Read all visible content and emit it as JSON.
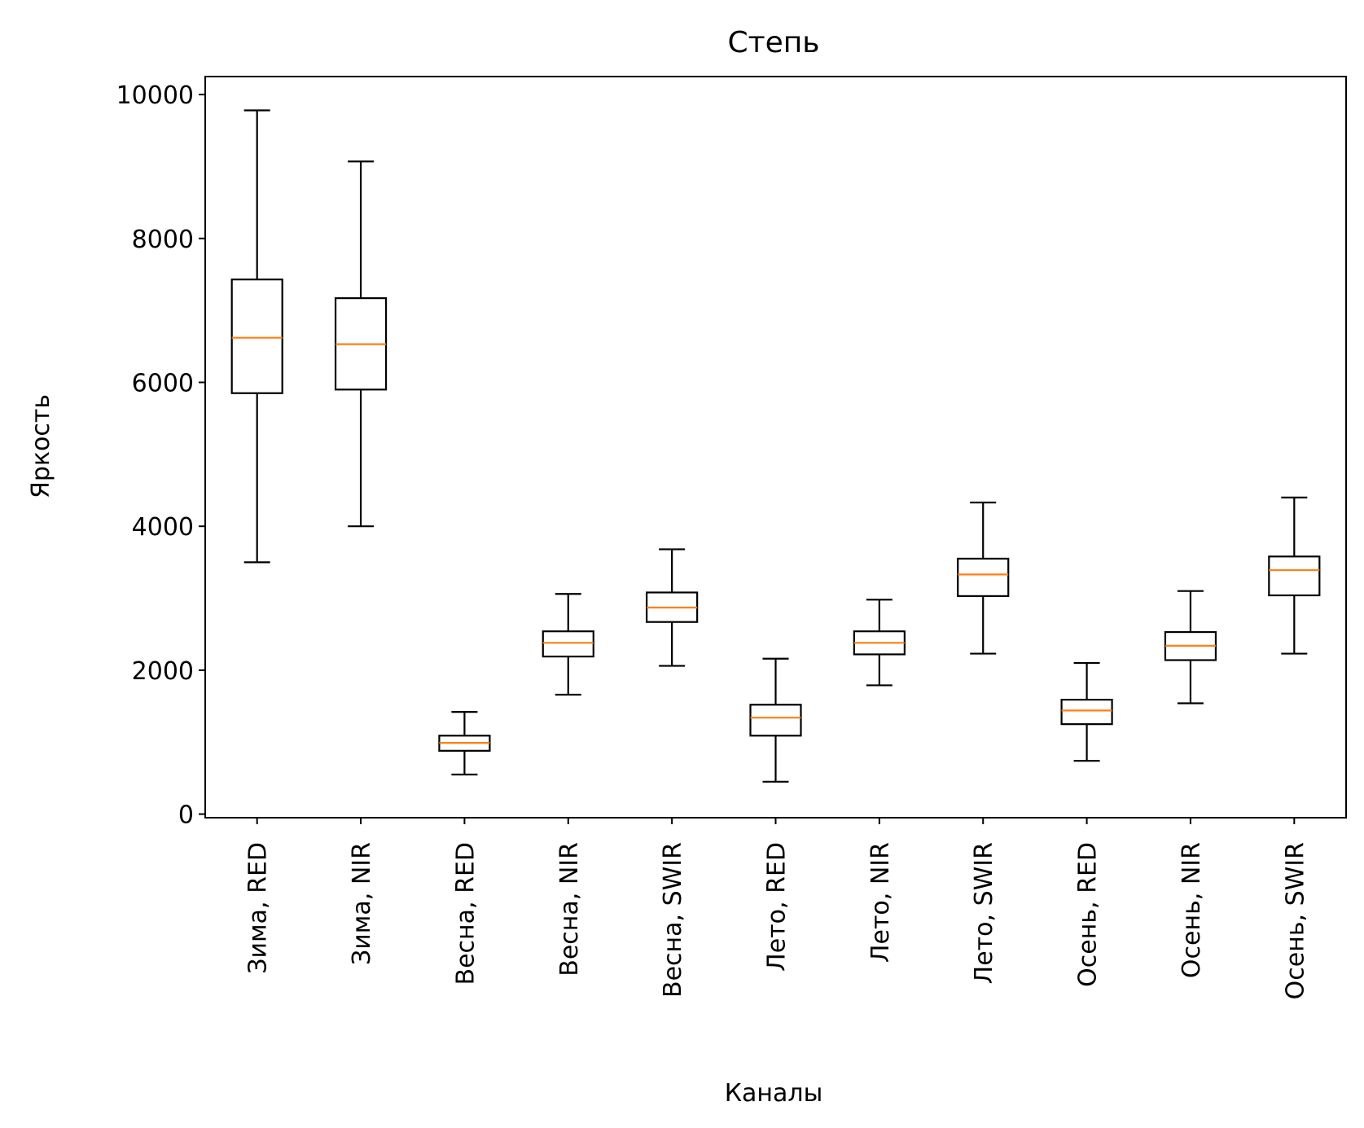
{
  "chart_data": {
    "type": "box",
    "title": "Степь",
    "xlabel": "Каналы",
    "ylabel": "Яркость",
    "ylim": [
      -50,
      10250
    ],
    "yticks": [
      0,
      2000,
      4000,
      6000,
      8000,
      10000
    ],
    "ytick_labels": [
      "0",
      "2000",
      "4000",
      "6000",
      "8000",
      "10000"
    ],
    "grid": false,
    "colors": {
      "box": "#000000",
      "median": "#ff7f0e"
    },
    "categories": [
      "Зима, RED",
      "Зима, NIR",
      "Весна, RED",
      "Весна, NIR",
      "Весна, SWIR",
      "Лето, RED",
      "Лето, NIR",
      "Лето, SWIR",
      "Осень, RED",
      "Осень, NIR",
      "Осень, SWIR"
    ],
    "boxes": [
      {
        "whisker_low": 3500,
        "q1": 5850,
        "median": 6620,
        "q3": 7430,
        "whisker_high": 9780
      },
      {
        "whisker_low": 4000,
        "q1": 5900,
        "median": 6530,
        "q3": 7170,
        "whisker_high": 9070
      },
      {
        "whisker_low": 550,
        "q1": 880,
        "median": 990,
        "q3": 1090,
        "whisker_high": 1420
      },
      {
        "whisker_low": 1660,
        "q1": 2190,
        "median": 2380,
        "q3": 2540,
        "whisker_high": 3060
      },
      {
        "whisker_low": 2060,
        "q1": 2670,
        "median": 2870,
        "q3": 3080,
        "whisker_high": 3680
      },
      {
        "whisker_low": 450,
        "q1": 1090,
        "median": 1340,
        "q3": 1520,
        "whisker_high": 2160
      },
      {
        "whisker_low": 1790,
        "q1": 2220,
        "median": 2380,
        "q3": 2540,
        "whisker_high": 2980
      },
      {
        "whisker_low": 2230,
        "q1": 3030,
        "median": 3330,
        "q3": 3550,
        "whisker_high": 4330
      },
      {
        "whisker_low": 740,
        "q1": 1250,
        "median": 1440,
        "q3": 1590,
        "whisker_high": 2100
      },
      {
        "whisker_low": 1540,
        "q1": 2140,
        "median": 2340,
        "q3": 2530,
        "whisker_high": 3100
      },
      {
        "whisker_low": 2230,
        "q1": 3040,
        "median": 3390,
        "q3": 3580,
        "whisker_high": 4400
      }
    ]
  }
}
